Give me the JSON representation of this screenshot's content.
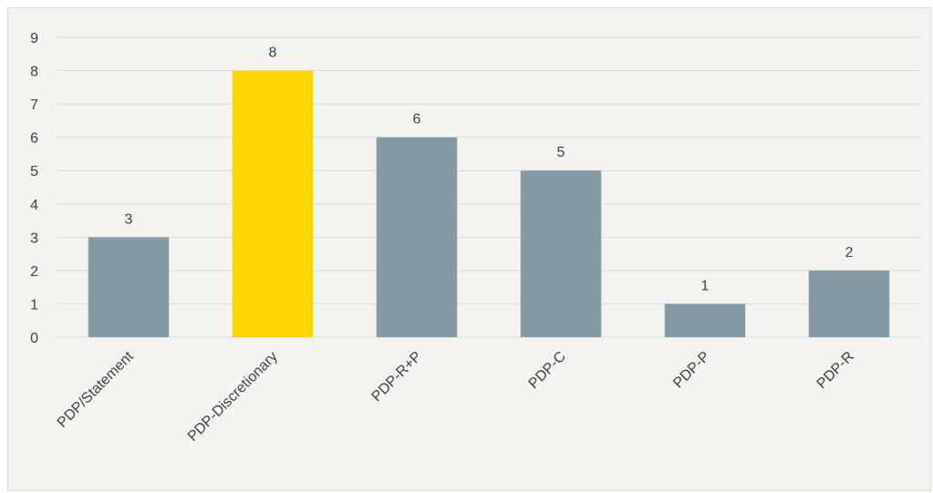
{
  "chart_data": {
    "type": "bar",
    "categories": [
      "PDP/Statement",
      "PDP-Discretionary",
      "PDP-R+P",
      "PDP-C",
      "PDP-P",
      "PDP-R"
    ],
    "values": [
      3,
      8,
      6,
      5,
      1,
      2
    ],
    "title": "",
    "xlabel": "",
    "ylabel": "",
    "ylim": [
      0,
      9
    ],
    "yticks": [
      "0",
      "1",
      "2",
      "3",
      "4",
      "5",
      "6",
      "7",
      "8",
      "9"
    ],
    "data_labels": [
      "3",
      "8",
      "6",
      "5",
      "1",
      "2"
    ],
    "grid": true,
    "legend": "none",
    "bar_color": "#849ba6",
    "highlight_index": 1,
    "highlight_color": "#ffd700"
  }
}
